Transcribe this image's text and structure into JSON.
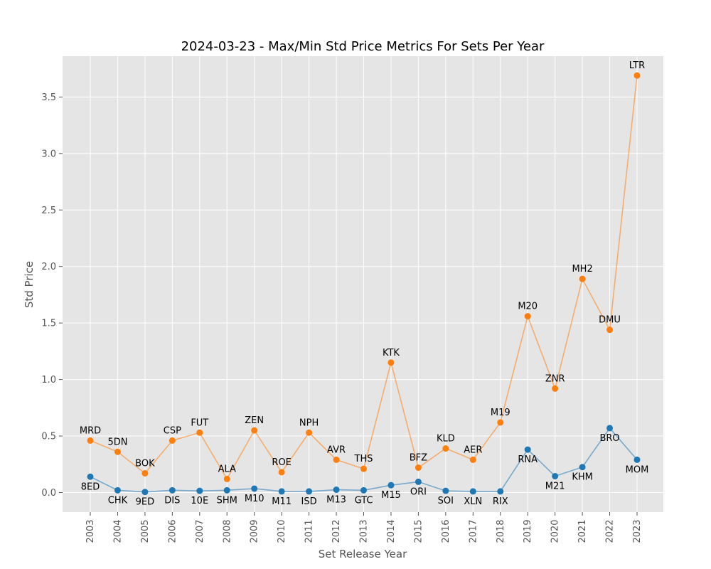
{
  "chart_data": {
    "type": "line",
    "title": "2024-03-23 - Max/Min Std Price Metrics For Sets Per Year",
    "xlabel": "Set Release Year",
    "ylabel": "Std Price",
    "categories": [
      "2003",
      "2004",
      "2005",
      "2006",
      "2007",
      "2008",
      "2009",
      "2010",
      "2011",
      "2012",
      "2013",
      "2014",
      "2015",
      "2016",
      "2017",
      "2018",
      "2019",
      "2020",
      "2021",
      "2022",
      "2023"
    ],
    "yticks": [
      "0.0",
      "0.5",
      "1.0",
      "1.5",
      "2.0",
      "2.5",
      "3.0",
      "3.5"
    ],
    "ylim": [
      -0.18,
      3.85
    ],
    "grid": true,
    "series": [
      {
        "color": "#ff7f0e",
        "values": [
          0.46,
          0.36,
          0.17,
          0.46,
          0.53,
          0.12,
          0.55,
          0.18,
          0.53,
          0.29,
          0.21,
          1.15,
          0.22,
          0.39,
          0.29,
          0.62,
          1.56,
          0.92,
          1.89,
          1.44,
          3.69
        ],
        "labels": [
          "MRD",
          "5DN",
          "BOK",
          "CSP",
          "FUT",
          "ALA",
          "ZEN",
          "ROE",
          "NPH",
          "AVR",
          "THS",
          "KTK",
          "BFZ",
          "KLD",
          "AER",
          "M19",
          "M20",
          "ZNR",
          "MH2",
          "DMU",
          "LTR"
        ]
      },
      {
        "color": "#1f77b4",
        "values": [
          0.14,
          0.02,
          0.005,
          0.02,
          0.015,
          0.02,
          0.035,
          0.01,
          0.01,
          0.025,
          0.02,
          0.065,
          0.095,
          0.015,
          0.01,
          0.01,
          0.38,
          0.145,
          0.225,
          0.57,
          0.29
        ],
        "labels": [
          "8ED",
          "CHK",
          "9ED",
          "DIS",
          "10E",
          "SHM",
          "M10",
          "M11",
          "ISD",
          "M13",
          "GTC",
          "M15",
          "ORI",
          "SOI",
          "XLN",
          "RIX",
          "RNA",
          "M21",
          "KHM",
          "BRO",
          "MOM"
        ]
      }
    ]
  }
}
